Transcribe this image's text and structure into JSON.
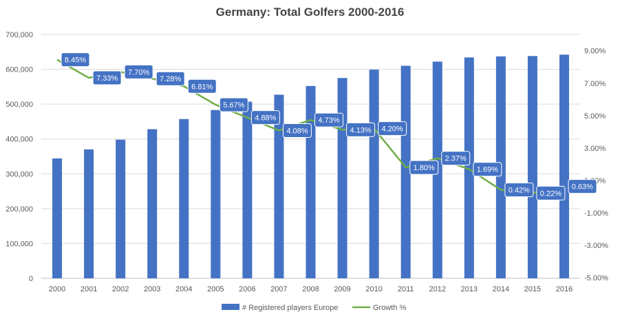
{
  "chart_data": {
    "type": "bar",
    "title": "Germany: Total Golfers 2000-2016",
    "categories": [
      "2000",
      "2001",
      "2002",
      "2003",
      "2004",
      "2005",
      "2006",
      "2007",
      "2008",
      "2009",
      "2010",
      "2011",
      "2012",
      "2013",
      "2014",
      "2015",
      "2016"
    ],
    "series": [
      {
        "name": "# Registered players Europe",
        "type": "bar",
        "axis": "left",
        "color": "#4472C4",
        "values": [
          344000,
          370000,
          398000,
          428000,
          457000,
          483000,
          507000,
          527000,
          552000,
          575000,
          599000,
          610000,
          622000,
          634000,
          637000,
          638000,
          642000
        ]
      },
      {
        "name": "Growth %",
        "type": "line",
        "axis": "right",
        "color": "#70AD47",
        "values": [
          8.45,
          7.33,
          7.7,
          7.28,
          6.81,
          5.67,
          4.88,
          4.08,
          4.73,
          4.13,
          4.2,
          1.8,
          2.37,
          1.69,
          0.42,
          0.22,
          0.63
        ],
        "labels": [
          "8.45%",
          "7.33%",
          "7.70%",
          "7.28%",
          "6.81%",
          "5.67%",
          "4.88%",
          "4.08%",
          "4.73%",
          "4.13%",
          "4.20%",
          "1.80%",
          "2.37%",
          "1.69%",
          "0.42%",
          "0.22%",
          "0.63%"
        ]
      }
    ],
    "y_left": {
      "min": 0,
      "max": 700000,
      "ticks": [
        0,
        100000,
        200000,
        300000,
        400000,
        500000,
        600000,
        700000
      ],
      "tick_labels": [
        "0",
        "100,000",
        "200,000",
        "300,000",
        "400,000",
        "500,000",
        "600,000",
        "700,000"
      ]
    },
    "y_right": {
      "min": -5,
      "max": 10,
      "ticks": [
        -5,
        -3,
        -1,
        1,
        3,
        5,
        7,
        9
      ],
      "tick_labels": [
        "-5.00%",
        "-3.00%",
        "-1.00%",
        "1.00%",
        "3.00%",
        "5.00%",
        "7.00%",
        "9.00%"
      ]
    },
    "grid": true,
    "legend_position": "bottom",
    "label_box_color": "#4472C4"
  }
}
